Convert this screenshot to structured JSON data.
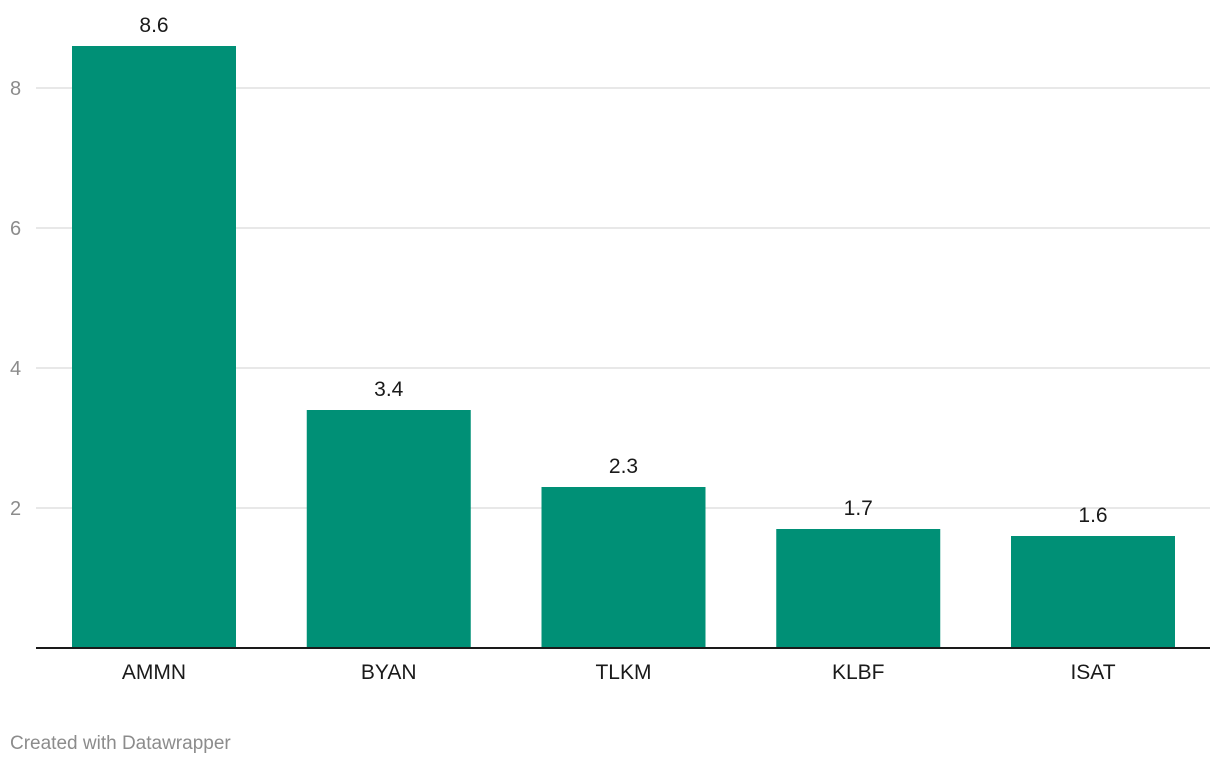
{
  "chart_data": {
    "type": "bar",
    "categories": [
      "AMMN",
      "BYAN",
      "TLKM",
      "KLBF",
      "ISAT"
    ],
    "values": [
      8.6,
      3.4,
      2.3,
      1.7,
      1.6
    ],
    "value_labels": [
      "8.6",
      "3.4",
      "2.3",
      "1.7",
      "1.6"
    ],
    "y_ticks": [
      2,
      4,
      6,
      8
    ],
    "ylim": [
      0,
      8.6
    ],
    "grid": true,
    "legend": "none",
    "title": "",
    "xlabel": "",
    "ylabel": ""
  },
  "colors": {
    "bar": "#009076",
    "grid": "#e0e0e0",
    "axis": "#1a1a1a",
    "tick_label": "#8c8c8c",
    "value_label": "#1a1a1a",
    "category_label": "#1a1a1a"
  },
  "footer": {
    "credit": "Created with Datawrapper"
  }
}
